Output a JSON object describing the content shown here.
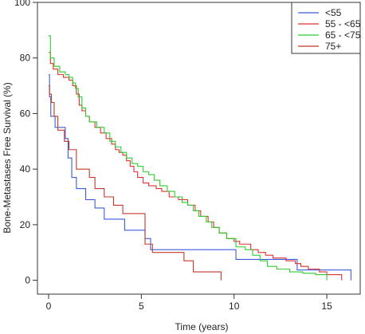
{
  "chart_data": {
    "type": "line",
    "step": true,
    "title": "",
    "xlabel": "Time (years)",
    "ylabel": "Bone-Metastases Free Survival (%)",
    "xlim": [
      -0.6,
      16.8
    ],
    "ylim": [
      -5,
      100
    ],
    "xticks": [
      0,
      5,
      10,
      15
    ],
    "yticks": [
      0,
      20,
      40,
      60,
      80,
      100
    ],
    "grid": false,
    "legend_position": "top-right",
    "series": [
      {
        "name": "<55",
        "color": "#3b5bdb",
        "points": [
          [
            0,
            74
          ],
          [
            0.05,
            66
          ],
          [
            0.12,
            59
          ],
          [
            0.35,
            55
          ],
          [
            0.9,
            51
          ],
          [
            1.05,
            44
          ],
          [
            1.25,
            37
          ],
          [
            1.5,
            33
          ],
          [
            2.0,
            29
          ],
          [
            2.5,
            26
          ],
          [
            3.0,
            22
          ],
          [
            4.1,
            18
          ],
          [
            5.2,
            15
          ],
          [
            5.5,
            11
          ],
          [
            8.0,
            11
          ],
          [
            10.1,
            7.5
          ],
          [
            11.5,
            7.5
          ],
          [
            13.4,
            3.7
          ],
          [
            16.3,
            3.7
          ],
          [
            16.3,
            0
          ]
        ]
      },
      {
        "name": "55 - <65",
        "color": "#e03131",
        "points": [
          [
            0,
            82
          ],
          [
            0.1,
            78
          ],
          [
            0.25,
            76
          ],
          [
            0.5,
            74
          ],
          [
            0.8,
            73
          ],
          [
            1.1,
            72
          ],
          [
            1.3,
            70
          ],
          [
            1.5,
            67
          ],
          [
            1.65,
            63
          ],
          [
            1.8,
            61
          ],
          [
            2.0,
            59
          ],
          [
            2.2,
            57
          ],
          [
            2.5,
            55
          ],
          [
            2.8,
            53
          ],
          [
            3.1,
            51
          ],
          [
            3.4,
            49
          ],
          [
            3.6,
            47
          ],
          [
            3.8,
            46
          ],
          [
            4.0,
            45
          ],
          [
            4.2,
            43
          ],
          [
            4.4,
            41
          ],
          [
            4.6,
            39
          ],
          [
            4.8,
            37
          ],
          [
            5.1,
            35
          ],
          [
            5.4,
            34
          ],
          [
            5.8,
            33
          ],
          [
            6.1,
            32
          ],
          [
            6.5,
            30
          ],
          [
            7.0,
            29
          ],
          [
            7.5,
            27
          ],
          [
            7.9,
            25
          ],
          [
            8.2,
            23
          ],
          [
            8.6,
            21
          ],
          [
            8.9,
            19
          ],
          [
            9.2,
            17
          ],
          [
            9.6,
            15
          ],
          [
            10.0,
            14
          ],
          [
            10.3,
            13
          ],
          [
            10.9,
            11
          ],
          [
            11.3,
            10
          ],
          [
            11.7,
            9
          ],
          [
            12.1,
            8
          ],
          [
            12.8,
            7
          ],
          [
            13.3,
            6
          ],
          [
            13.6,
            5
          ],
          [
            14.0,
            4
          ],
          [
            14.6,
            3
          ],
          [
            15.0,
            2
          ],
          [
            15.8,
            1.5
          ],
          [
            15.8,
            0
          ]
        ]
      },
      {
        "name": "65 - <75",
        "color": "#2fcc2f",
        "points": [
          [
            0,
            88
          ],
          [
            0.1,
            80
          ],
          [
            0.3,
            77
          ],
          [
            0.6,
            75
          ],
          [
            0.9,
            74
          ],
          [
            1.1,
            73
          ],
          [
            1.3,
            71
          ],
          [
            1.45,
            69
          ],
          [
            1.6,
            66
          ],
          [
            1.8,
            62
          ],
          [
            2.0,
            59
          ],
          [
            2.2,
            57
          ],
          [
            2.6,
            55
          ],
          [
            3.0,
            53
          ],
          [
            3.3,
            50
          ],
          [
            3.6,
            48
          ],
          [
            3.9,
            46
          ],
          [
            4.2,
            44
          ],
          [
            4.5,
            42
          ],
          [
            4.8,
            41
          ],
          [
            5.1,
            39
          ],
          [
            5.4,
            38
          ],
          [
            5.7,
            36
          ],
          [
            6.0,
            34
          ],
          [
            6.4,
            32
          ],
          [
            6.8,
            30
          ],
          [
            7.2,
            28
          ],
          [
            7.5,
            27
          ],
          [
            7.8,
            25
          ],
          [
            8.1,
            23
          ],
          [
            8.5,
            21
          ],
          [
            8.8,
            19
          ],
          [
            9.2,
            17
          ],
          [
            9.6,
            15
          ],
          [
            10.1,
            12
          ],
          [
            10.6,
            11
          ],
          [
            11.0,
            9
          ],
          [
            11.4,
            7
          ],
          [
            11.8,
            5
          ],
          [
            12.3,
            4
          ],
          [
            13.0,
            3
          ],
          [
            13.7,
            2.5
          ],
          [
            14.4,
            2
          ],
          [
            15.0,
            1
          ],
          [
            15.0,
            0
          ]
        ]
      },
      {
        "name": "75+",
        "color": "#c0392b",
        "points": [
          [
            0,
            70
          ],
          [
            0.05,
            67
          ],
          [
            0.15,
            64
          ],
          [
            0.3,
            59
          ],
          [
            0.5,
            54
          ],
          [
            0.85,
            50
          ],
          [
            1.1,
            47
          ],
          [
            1.5,
            40
          ],
          [
            2.2,
            37
          ],
          [
            2.5,
            33
          ],
          [
            3.0,
            30
          ],
          [
            3.5,
            27
          ],
          [
            4.0,
            24
          ],
          [
            5.2,
            13
          ],
          [
            5.6,
            10
          ],
          [
            7.3,
            7
          ],
          [
            7.8,
            3
          ],
          [
            9.3,
            3
          ],
          [
            9.3,
            0
          ]
        ]
      }
    ]
  }
}
